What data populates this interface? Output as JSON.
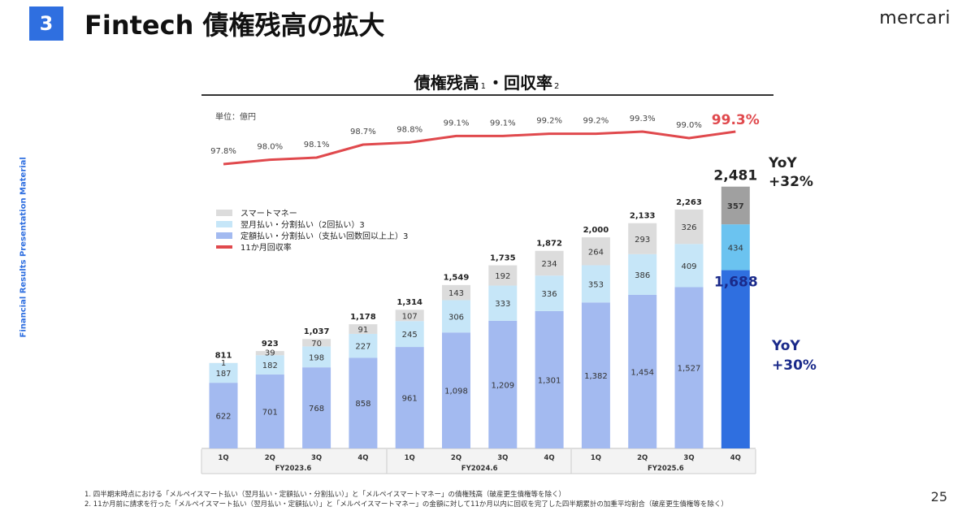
{
  "slide": {
    "section_number": "3",
    "title": "Fintech 債権残高の拡大",
    "brand": "mercari",
    "side_label": "Financial Results Presentation Material",
    "page_number": "25",
    "footnotes": [
      "1. 四半期末時点における「メルペイスマート払い（翌月払い・定額払い・分割払い）」と「メルペイスマートマネー」の債権残高（破産更生債権等を除く）",
      "2. 11か月前に請求を行った「メルペイスマート払い（翌月払い・定額払い）」と「メルペイスマートマネー」の金額に対して11か月以内に回収を完了した四半期累計の加重平均割合（破産更生債権等を除く）"
    ],
    "accent_color": "#2f6fe0"
  },
  "chart_header": {
    "title_main": "債権残高",
    "title_sup1": "1",
    "title_sep": "・",
    "title_second": "回収率",
    "title_sup2": "2"
  },
  "chart_data": {
    "type": "bar",
    "unit_label": "単位：億円",
    "categories": [
      "1Q",
      "2Q",
      "3Q",
      "4Q",
      "1Q",
      "2Q",
      "3Q",
      "4Q",
      "1Q",
      "2Q",
      "3Q",
      "4Q"
    ],
    "fiscal_years": [
      {
        "label": "FY2023.6",
        "start": 0,
        "count": 4
      },
      {
        "label": "FY2024.6",
        "start": 4,
        "count": 4
      },
      {
        "label": "FY2025.6",
        "start": 8,
        "count": 4
      }
    ],
    "series": [
      {
        "name": "定額払い・分割払い（支払い回数回以上上）3",
        "values": [
          622,
          701,
          768,
          858,
          961,
          1098,
          1209,
          1301,
          1382,
          1454,
          1527,
          1688
        ],
        "color": "#a3baf0",
        "highlight_color": "#2f6fe0"
      },
      {
        "name": "翌月払い・分割払い（2回払い）3",
        "values": [
          187,
          182,
          198,
          227,
          245,
          306,
          333,
          336,
          353,
          386,
          409,
          434
        ],
        "color": "#c6e6f8",
        "highlight_color": "#6bc3f0"
      },
      {
        "name": "スマートマネー",
        "values": [
          1,
          39,
          70,
          91,
          107,
          143,
          192,
          234,
          264,
          293,
          326,
          357
        ],
        "color": "#dcdcdc",
        "highlight_color": "#a0a0a0"
      }
    ],
    "bottom_labels": [
      "622",
      "701",
      "768",
      "858",
      "961",
      "1,098",
      "1,209",
      "1,301",
      "1,382",
      "1,454",
      "1,527",
      "1,688"
    ],
    "mid_labels": [
      "187",
      "182",
      "198",
      "227",
      "245",
      "306",
      "333",
      "336",
      "353",
      "386",
      "409",
      "434"
    ],
    "top_labels": [
      "1",
      "39",
      "70",
      "91",
      "107",
      "143",
      "192",
      "234",
      "264",
      "293",
      "326",
      "357"
    ],
    "totals": [
      811,
      923,
      1037,
      1178,
      1314,
      1549,
      1735,
      1872,
      2000,
      2133,
      2263,
      2481
    ],
    "total_labels": [
      "811",
      "923",
      "1,037",
      "1,178",
      "1,314",
      "1,549",
      "1,735",
      "1,872",
      "2,000",
      "2,133",
      "2,263",
      "2,481"
    ],
    "recovery_rate": {
      "name": "11か月回収率",
      "values": [
        97.8,
        98.0,
        98.1,
        98.7,
        98.8,
        99.1,
        99.1,
        99.2,
        99.2,
        99.3,
        99.0,
        99.3
      ],
      "labels": [
        "97.8%",
        "98.0%",
        "98.1%",
        "98.7%",
        "98.8%",
        "99.1%",
        "99.1%",
        "99.2%",
        "99.2%",
        "99.3%",
        "99.0%",
        "99.3%"
      ],
      "color": "#e0494d"
    },
    "legend": [
      {
        "label": "スマートマネー",
        "color": "#dcdcdc"
      },
      {
        "label": "翌月払い・分割払い（2回払い）3",
        "color": "#c6e6f8"
      },
      {
        "label": "定額払い・分割払い（支払い回数回以上上）3",
        "color": "#a3baf0"
      },
      {
        "label": "11か月回収率",
        "color": "#e0494d"
      }
    ],
    "legend_placement": "upper-left",
    "yoy_total": {
      "label": "YoY",
      "value": "+32%"
    },
    "yoy_installment": {
      "label": "YoY",
      "value": "+30%"
    }
  }
}
